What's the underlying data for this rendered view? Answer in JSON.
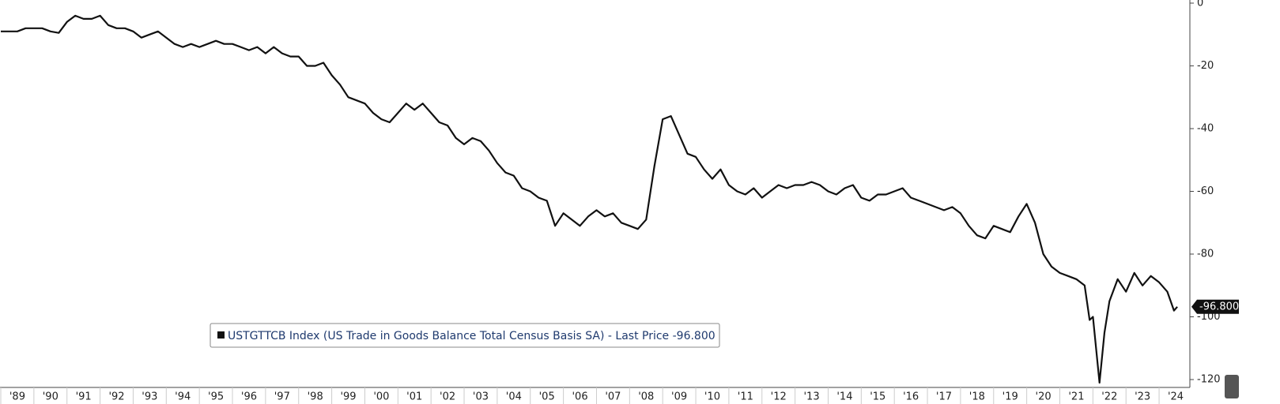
{
  "chart_data": {
    "type": "line",
    "series": [
      {
        "name": "USTGTTCB Index (US Trade in Goods Balance Total Census Basis SA) - Last Price -96.800",
        "color": "#111111",
        "x": [
          1989,
          1989.25,
          1989.5,
          1989.75,
          1990,
          1990.25,
          1990.5,
          1990.75,
          1991,
          1991.25,
          1991.5,
          1991.75,
          1992,
          1992.25,
          1992.5,
          1992.75,
          1993,
          1993.25,
          1993.5,
          1993.75,
          1994,
          1994.25,
          1994.5,
          1994.75,
          1995,
          1995.25,
          1995.5,
          1995.75,
          1996,
          1996.25,
          1996.5,
          1996.75,
          1997,
          1997.25,
          1997.5,
          1997.75,
          1998,
          1998.25,
          1998.5,
          1998.75,
          1999,
          1999.25,
          1999.5,
          1999.75,
          2000,
          2000.25,
          2000.5,
          2000.75,
          2001,
          2001.25,
          2001.5,
          2001.75,
          2002,
          2002.25,
          2002.5,
          2002.75,
          2003,
          2003.25,
          2003.5,
          2003.75,
          2004,
          2004.25,
          2004.5,
          2004.75,
          2005,
          2005.25,
          2005.5,
          2005.75,
          2006,
          2006.25,
          2006.5,
          2006.75,
          2007,
          2007.25,
          2007.5,
          2007.75,
          2008,
          2008.25,
          2008.5,
          2008.75,
          2009,
          2009.25,
          2009.5,
          2009.75,
          2010,
          2010.25,
          2010.5,
          2010.75,
          2011,
          2011.25,
          2011.5,
          2011.75,
          2012,
          2012.25,
          2012.5,
          2012.75,
          2013,
          2013.25,
          2013.5,
          2013.75,
          2014,
          2014.25,
          2014.5,
          2014.75,
          2015,
          2015.25,
          2015.5,
          2015.75,
          2016,
          2016.25,
          2016.5,
          2016.75,
          2017,
          2017.25,
          2017.5,
          2017.75,
          2018,
          2018.25,
          2018.5,
          2018.75,
          2019,
          2019.25,
          2019.5,
          2019.75,
          2020,
          2020.25,
          2020.5,
          2020.75,
          2021,
          2021.25,
          2021.5,
          2021.75,
          2021.9,
          2022,
          2022.2,
          2022.35,
          2022.5,
          2022.75,
          2023,
          2023.25,
          2023.5,
          2023.75,
          2024,
          2024.25,
          2024.45,
          2024.55
        ],
        "values": [
          -9,
          -9,
          -9,
          -8,
          -8,
          -8,
          -9,
          -9.5,
          -6,
          -4,
          -5,
          -5,
          -4,
          -7,
          -8,
          -8,
          -9,
          -11,
          -10,
          -9,
          -11,
          -13,
          -14,
          -13,
          -14,
          -13,
          -12,
          -13,
          -13,
          -14,
          -15,
          -14,
          -16,
          -14,
          -16,
          -17,
          -17,
          -20,
          -20,
          -19,
          -23,
          -26,
          -30,
          -31,
          -32,
          -35,
          -37,
          -38,
          -35,
          -32,
          -34,
          -32,
          -35,
          -38,
          -39,
          -43,
          -45,
          -43,
          -44,
          -47,
          -51,
          -54,
          -55,
          -59,
          -60,
          -62,
          -63,
          -71,
          -67,
          -69,
          -71,
          -68,
          -66,
          -68,
          -67,
          -70,
          -71,
          -72,
          -69,
          -52,
          -37,
          -36,
          -42,
          -48,
          -49,
          -53,
          -56,
          -53,
          -58,
          -60,
          -61,
          -59,
          -62,
          -60,
          -58,
          -59,
          -58,
          -58,
          -57,
          -58,
          -60,
          -61,
          -59,
          -58,
          -62,
          -63,
          -61,
          -61,
          -60,
          -59,
          -62,
          -63,
          -64,
          -65,
          -66,
          -65,
          -67,
          -71,
          -74,
          -75,
          -71,
          -72,
          -73,
          -68,
          -64,
          -70,
          -80,
          -84,
          -86,
          -87,
          -88,
          -90,
          -101,
          -100,
          -121,
          -105,
          -95,
          -88,
          -92,
          -86,
          -90,
          -87,
          -89,
          -92,
          -98,
          -96.8
        ]
      }
    ],
    "last_value_label": "-96.800",
    "xlim": [
      1989,
      2024.93
    ],
    "ylim": [
      -121,
      1
    ],
    "xticks": [
      {
        "value": 1989,
        "label": "'89"
      },
      {
        "value": 1990,
        "label": "'90"
      },
      {
        "value": 1991,
        "label": "'91"
      },
      {
        "value": 1992,
        "label": "'92"
      },
      {
        "value": 1993,
        "label": "'93"
      },
      {
        "value": 1994,
        "label": "'94"
      },
      {
        "value": 1995,
        "label": "'95"
      },
      {
        "value": 1996,
        "label": "'96"
      },
      {
        "value": 1997,
        "label": "'97"
      },
      {
        "value": 1998,
        "label": "'98"
      },
      {
        "value": 1999,
        "label": "'99"
      },
      {
        "value": 2000,
        "label": "'00"
      },
      {
        "value": 2001,
        "label": "'01"
      },
      {
        "value": 2002,
        "label": "'02"
      },
      {
        "value": 2003,
        "label": "'03"
      },
      {
        "value": 2004,
        "label": "'04"
      },
      {
        "value": 2005,
        "label": "'05"
      },
      {
        "value": 2006,
        "label": "'06"
      },
      {
        "value": 2007,
        "label": "'07"
      },
      {
        "value": 2008,
        "label": "'08"
      },
      {
        "value": 2009,
        "label": "'09"
      },
      {
        "value": 2010,
        "label": "'10"
      },
      {
        "value": 2011,
        "label": "'11"
      },
      {
        "value": 2012,
        "label": "'12"
      },
      {
        "value": 2013,
        "label": "'13"
      },
      {
        "value": 2014,
        "label": "'14"
      },
      {
        "value": 2015,
        "label": "'15"
      },
      {
        "value": 2016,
        "label": "'16"
      },
      {
        "value": 2017,
        "label": "'17"
      },
      {
        "value": 2018,
        "label": "'18"
      },
      {
        "value": 2019,
        "label": "'19"
      },
      {
        "value": 2020,
        "label": "'20"
      },
      {
        "value": 2021,
        "label": "'21"
      },
      {
        "value": 2022,
        "label": "'22"
      },
      {
        "value": 2023,
        "label": "'23"
      },
      {
        "value": 2024,
        "label": "'24"
      }
    ],
    "yticks": [
      0,
      -20,
      -40,
      -60,
      -80,
      -100,
      -120
    ],
    "grid": false
  }
}
